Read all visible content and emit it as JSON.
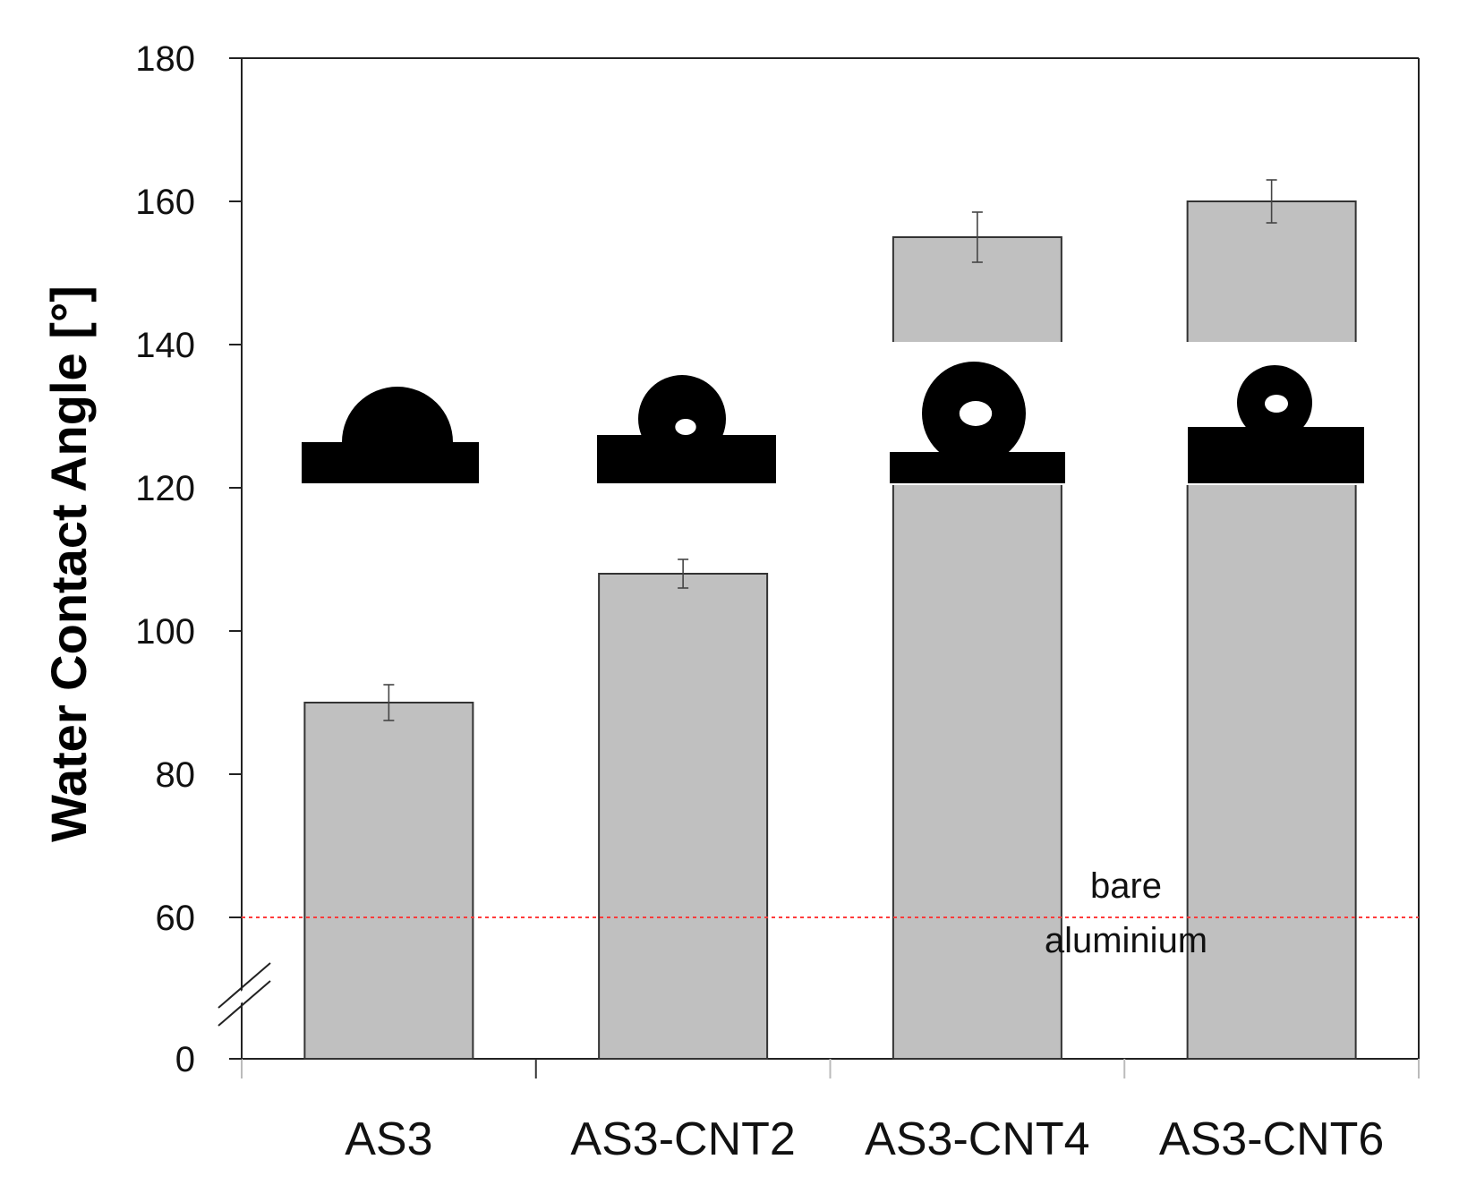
{
  "chart_data": {
    "type": "bar",
    "title": "",
    "xlabel": "",
    "ylabel": "Water Contact Angle [°]",
    "ylim": [
      0,
      180
    ],
    "axis_break": "between 0 and 60",
    "yticks": [
      0,
      60,
      80,
      100,
      120,
      140,
      160,
      180
    ],
    "categories": [
      "AS3",
      "AS3-CNT2",
      "AS3-CNT4",
      "AS3-CNT6"
    ],
    "values": [
      90,
      108,
      155,
      160
    ],
    "errors": [
      2.5,
      2,
      3.5,
      3
    ],
    "bar_color": "#c0c0c0",
    "reference_line": {
      "value": 60,
      "label_line1": "bare",
      "label_line2": "aluminium",
      "color": "#ff3b3b"
    },
    "insets": [
      {
        "category": "AS3",
        "name": "water-droplet-image"
      },
      {
        "category": "AS3-CNT2",
        "name": "water-droplet-image"
      },
      {
        "category": "AS3-CNT4",
        "name": "water-droplet-image"
      },
      {
        "category": "AS3-CNT6",
        "name": "water-droplet-image"
      }
    ]
  }
}
